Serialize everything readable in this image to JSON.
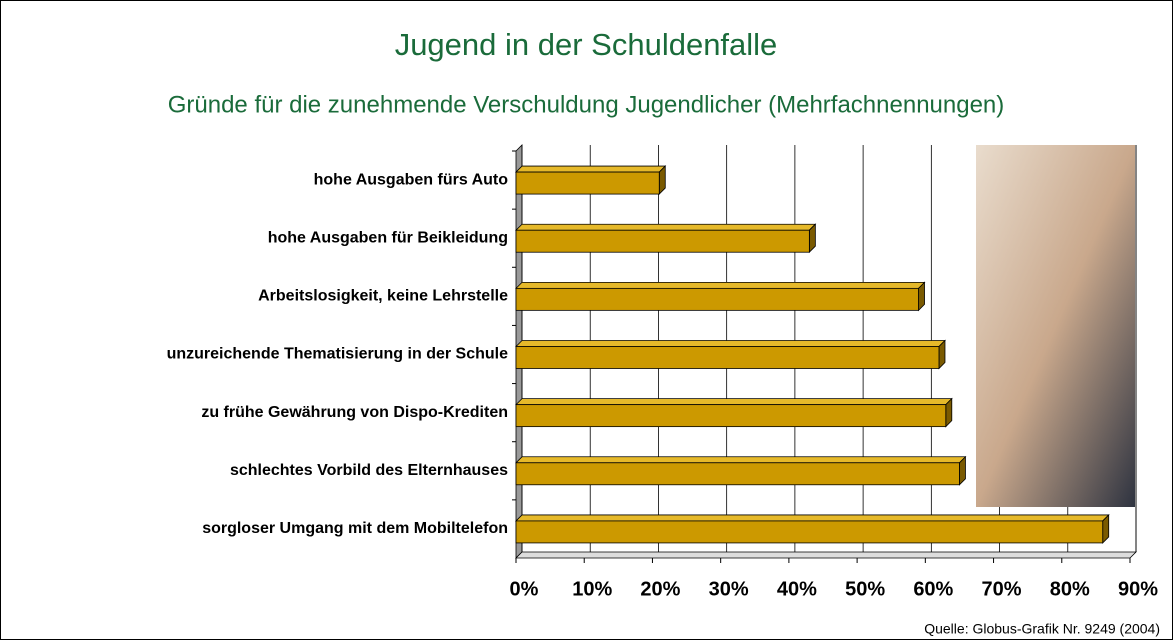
{
  "chart_data": {
    "type": "bar",
    "orientation": "horizontal",
    "title": "Jugend in der Schuldenfalle",
    "subtitle": "Gründe für die zunehmende Verschuldung Jugendlicher (Mehrfachnennungen)",
    "categories": [
      "hohe Ausgaben fürs Auto",
      "hohe Ausgaben für Beikleidung",
      "Arbeitslosigkeit, keine Lehrstelle",
      "unzureichende Thematisierung in der Schule",
      "zu frühe Gewährung von Dispo-Krediten",
      "schlechtes Vorbild des Elternhauses",
      "sorgloser Umgang mit dem Mobiltelefon"
    ],
    "values": [
      21,
      43,
      59,
      62,
      63,
      65,
      86
    ],
    "color": "#cc9900",
    "xlim": [
      0,
      90
    ],
    "xticks": [
      {
        "value": 0,
        "label": "0%"
      },
      {
        "value": 10,
        "label": "10%"
      },
      {
        "value": 20,
        "label": "20%"
      },
      {
        "value": 30,
        "label": "30%"
      },
      {
        "value": 40,
        "label": "40%"
      },
      {
        "value": 50,
        "label": "50%"
      },
      {
        "value": 60,
        "label": "60%"
      },
      {
        "value": 70,
        "label": "70%"
      },
      {
        "value": 80,
        "label": "80%"
      },
      {
        "value": 90,
        "label": "90%"
      }
    ],
    "grid": true,
    "source": "Quelle: Globus-Grafik Nr. 9249 (2004)"
  }
}
